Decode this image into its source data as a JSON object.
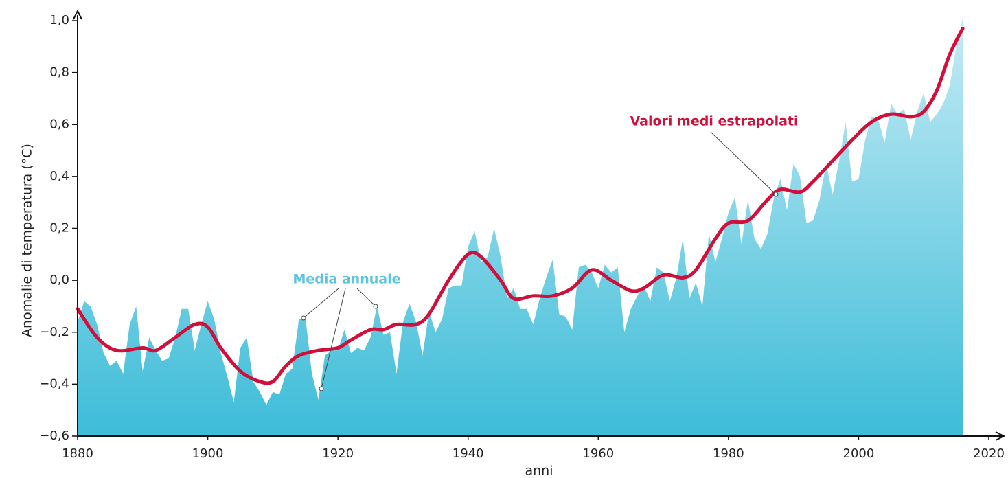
{
  "chart_data": {
    "type": "area",
    "xlabel": "anni",
    "ylabel": "Anomalie di temperatura (°C)",
    "xlim": [
      1880,
      2020
    ],
    "xticks": [
      1880,
      1900,
      1920,
      1940,
      1960,
      1980,
      2000,
      2020
    ],
    "ylim": [
      -0.6,
      1.0
    ],
    "yticks": [
      {
        "value": -0.6,
        "label": "−0,6"
      },
      {
        "value": -0.4,
        "label": "−0,4"
      },
      {
        "value": -0.2,
        "label": "−0,2"
      },
      {
        "value": 0.0,
        "label": "0,0"
      },
      {
        "value": 0.2,
        "label": "0,2"
      },
      {
        "value": 0.4,
        "label": "0,4"
      },
      {
        "value": 0.6,
        "label": "0,6"
      },
      {
        "value": 0.8,
        "label": "0,8"
      },
      {
        "value": 1.0,
        "label": "1,0"
      }
    ],
    "series": [
      {
        "name": "Media annuale",
        "color": "#5bc4de",
        "x": [
          1880,
          1881,
          1882,
          1883,
          1884,
          1885,
          1886,
          1887,
          1888,
          1889,
          1890,
          1891,
          1892,
          1893,
          1894,
          1895,
          1896,
          1897,
          1898,
          1899,
          1900,
          1901,
          1902,
          1903,
          1904,
          1905,
          1906,
          1907,
          1908,
          1909,
          1910,
          1911,
          1912,
          1913,
          1914,
          1915,
          1916,
          1917,
          1918,
          1919,
          1920,
          1921,
          1922,
          1923,
          1924,
          1925,
          1926,
          1927,
          1928,
          1929,
          1930,
          1931,
          1932,
          1933,
          1934,
          1935,
          1936,
          1937,
          1938,
          1939,
          1940,
          1941,
          1942,
          1943,
          1944,
          1945,
          1946,
          1947,
          1948,
          1949,
          1950,
          1951,
          1952,
          1953,
          1954,
          1955,
          1956,
          1957,
          1958,
          1959,
          1960,
          1961,
          1962,
          1963,
          1964,
          1965,
          1966,
          1967,
          1968,
          1969,
          1970,
          1971,
          1972,
          1973,
          1974,
          1975,
          1976,
          1977,
          1978,
          1979,
          1980,
          1981,
          1982,
          1983,
          1984,
          1985,
          1986,
          1987,
          1988,
          1989,
          1990,
          1991,
          1992,
          1993,
          1994,
          1995,
          1996,
          1997,
          1998,
          1999,
          2000,
          2001,
          2002,
          2003,
          2004,
          2005,
          2006,
          2007,
          2008,
          2009,
          2010,
          2011,
          2012,
          2013,
          2014,
          2015,
          2016
        ],
        "values": [
          -0.16,
          -0.08,
          -0.1,
          -0.17,
          -0.28,
          -0.33,
          -0.31,
          -0.36,
          -0.17,
          -0.1,
          -0.35,
          -0.22,
          -0.27,
          -0.31,
          -0.3,
          -0.22,
          -0.11,
          -0.11,
          -0.27,
          -0.17,
          -0.08,
          -0.15,
          -0.28,
          -0.37,
          -0.47,
          -0.26,
          -0.22,
          -0.39,
          -0.43,
          -0.48,
          -0.43,
          -0.44,
          -0.36,
          -0.34,
          -0.15,
          -0.14,
          -0.36,
          -0.46,
          -0.29,
          -0.27,
          -0.27,
          -0.19,
          -0.28,
          -0.26,
          -0.27,
          -0.22,
          -0.1,
          -0.21,
          -0.2,
          -0.36,
          -0.16,
          -0.09,
          -0.16,
          -0.29,
          -0.12,
          -0.2,
          -0.15,
          -0.03,
          -0.02,
          -0.02,
          0.13,
          0.19,
          0.07,
          0.09,
          0.2,
          0.09,
          -0.07,
          -0.03,
          -0.11,
          -0.11,
          -0.17,
          -0.07,
          0.01,
          0.08,
          -0.13,
          -0.14,
          -0.19,
          0.05,
          0.06,
          0.03,
          -0.03,
          0.06,
          0.03,
          0.05,
          -0.2,
          -0.11,
          -0.06,
          -0.02,
          -0.08,
          0.05,
          0.03,
          -0.08,
          0.01,
          0.16,
          -0.07,
          -0.01,
          -0.1,
          0.18,
          0.07,
          0.16,
          0.26,
          0.32,
          0.14,
          0.31,
          0.16,
          0.12,
          0.18,
          0.32,
          0.39,
          0.27,
          0.45,
          0.4,
          0.22,
          0.23,
          0.31,
          0.45,
          0.33,
          0.46,
          0.61,
          0.38,
          0.39,
          0.54,
          0.63,
          0.62,
          0.53,
          0.68,
          0.64,
          0.66,
          0.54,
          0.65,
          0.72,
          0.61,
          0.64,
          0.68,
          0.75,
          0.9,
          1.01
        ]
      },
      {
        "name": "Valori medi estrapolati",
        "color": "#d0103a",
        "x": [
          1880,
          1883,
          1886,
          1890,
          1892,
          1895,
          1898,
          1900,
          1902,
          1905,
          1908,
          1910,
          1912,
          1914,
          1917,
          1920,
          1922,
          1925,
          1927,
          1929,
          1932,
          1934,
          1937,
          1940,
          1942,
          1945,
          1947,
          1950,
          1953,
          1956,
          1959,
          1962,
          1965,
          1967,
          1970,
          1973,
          1975,
          1978,
          1980,
          1983,
          1986,
          1988,
          1991,
          1993,
          1996,
          1999,
          2002,
          2005,
          2008,
          2010,
          2012,
          2014,
          2016
        ],
        "values": [
          -0.11,
          -0.22,
          -0.27,
          -0.26,
          -0.27,
          -0.22,
          -0.17,
          -0.18,
          -0.26,
          -0.35,
          -0.39,
          -0.39,
          -0.33,
          -0.29,
          -0.27,
          -0.26,
          -0.23,
          -0.19,
          -0.19,
          -0.17,
          -0.17,
          -0.13,
          0.0,
          0.1,
          0.09,
          0.0,
          -0.07,
          -0.06,
          -0.06,
          -0.03,
          0.04,
          0.0,
          -0.04,
          -0.03,
          0.02,
          0.01,
          0.04,
          0.16,
          0.22,
          0.23,
          0.31,
          0.35,
          0.34,
          0.38,
          0.46,
          0.54,
          0.61,
          0.64,
          0.63,
          0.65,
          0.73,
          0.87,
          0.97
        ]
      }
    ]
  }
}
